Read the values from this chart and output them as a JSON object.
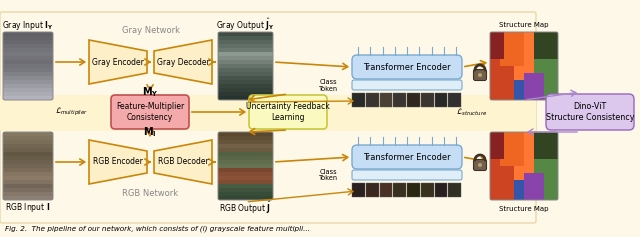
{
  "fig_width": 6.4,
  "fig_height": 2.37,
  "dpi": 100,
  "caption": "Fig. 2.  The pipeline of our network, which consists of (i) grayscale feature multipli...",
  "gray_input_label": "Gray Input $\\mathbf{I_Y}$",
  "gray_output_label": "Gray Output $\\hat{\\mathbf{J}}_\\mathbf{Y}$",
  "rgb_input_label": "RGB Input $\\mathbf{I}$",
  "rgb_output_label": "RGB Output $\\hat{\\mathbf{J}}$",
  "gray_network_label": "Gray Network",
  "rgb_network_label": "RGB Network",
  "gray_encoder_label": "Gray Encoder",
  "gray_decoder_label": "Gray Decoder",
  "rgb_encoder_label": "RGB Encoder",
  "rgb_decoder_label": "RGB Decoder",
  "feature_mult_label": "Feature-Multiplier\nConsistency",
  "uncertainty_label": "Uncertainty Feedback\nLearning",
  "transformer_encoder_label": "Transformer Encoder",
  "dino_vit_label": "Dino-ViT\nStructure Consistency",
  "structure_map_label": "Structure Map",
  "class_token_label": "Class\nToken",
  "m_y_label": "$\\mathbf{M_Y}$",
  "m_i_label": "$\\mathbf{M_I}$",
  "l_multiplier_label": "$\\mathcal{L}_{multiplier}$",
  "l_structure_label": "$\\mathcal{L}_{structure}$",
  "color_orange": "#C8860A",
  "color_trap_fill": "#FDF0C8",
  "color_trap_edge": "#C8860A",
  "color_pink_fill": "#F4AAAA",
  "color_pink_edge": "#C05050",
  "color_yellow_fill": "#FAFAC0",
  "color_yellow_edge": "#C8C840",
  "color_blue_fill": "#C5DDF5",
  "color_blue_edge": "#7AAAD0",
  "color_purple_fill": "#DCC8EC",
  "color_purple_edge": "#9966BB",
  "color_purple_arrow": "#AA88CC",
  "color_lock_fill": "#706050",
  "color_lock_edge": "#403020",
  "bg_color": "#FEF8E8",
  "bg_edge": "#E8D8A8"
}
